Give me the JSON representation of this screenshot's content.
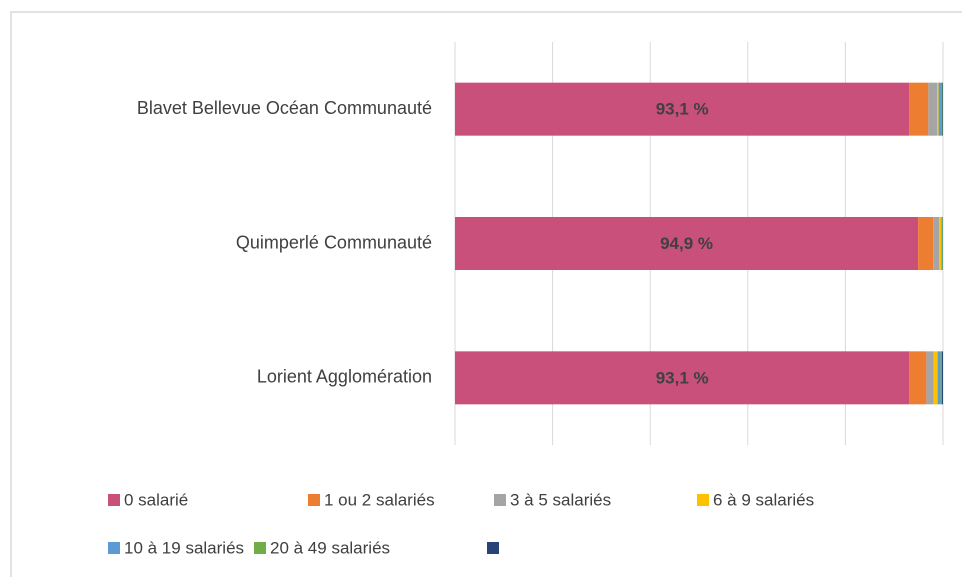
{
  "chart_data": {
    "type": "stacked_barh",
    "categories": [
      "Blavet Bellevue Océan Communauté",
      "Quimperlé Communauté",
      "Lorient Agglomération"
    ],
    "xlim": [
      0,
      100
    ],
    "xticks": [
      0,
      20,
      40,
      60,
      80,
      100
    ],
    "grid": true,
    "series": [
      {
        "name": "0 salarié",
        "color": "#c9507b",
        "values": [
          93.1,
          94.9,
          93.1
        ],
        "value_labels": [
          "93,1 %",
          "94,9 %",
          "93,1 %"
        ]
      },
      {
        "name": "1 ou 2 salariés",
        "color": "#ed7d31",
        "values": [
          3.9,
          3.1,
          3.5
        ]
      },
      {
        "name": "3 à 5 salariés",
        "color": "#a5a5a5",
        "values": [
          1.8,
          1.2,
          1.5
        ]
      },
      {
        "name": "6 à 9 salariés",
        "color": "#ffc000",
        "values": [
          0.3,
          0.5,
          0.8
        ]
      },
      {
        "name": "10 à 19 salariés",
        "color": "#5b9bd5",
        "values": [
          0.6,
          0.2,
          0.6
        ]
      },
      {
        "name": "20 à 49 salariés",
        "color": "#70ad47",
        "values": [
          0.2,
          0.1,
          0.3
        ]
      },
      {
        "name": null,
        "color": "#264478",
        "values": [
          0.1,
          0.0,
          0.2
        ]
      }
    ]
  }
}
